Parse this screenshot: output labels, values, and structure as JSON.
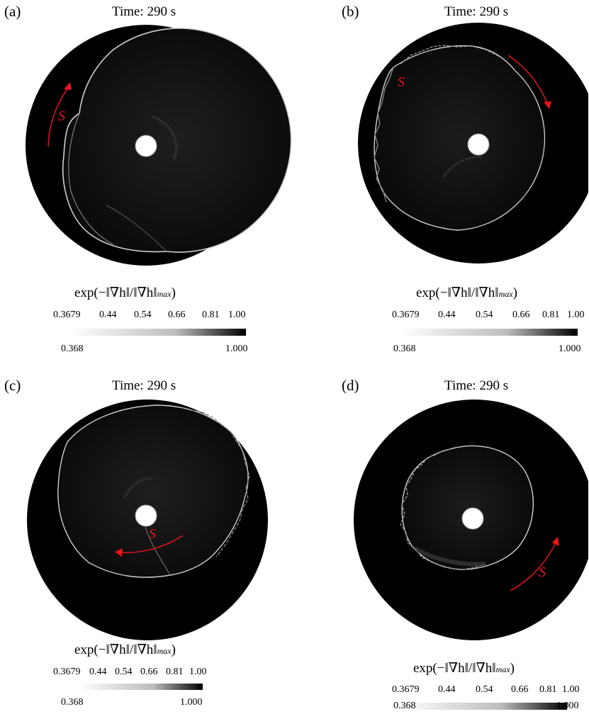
{
  "panels": [
    {
      "label": "(a)",
      "time": "Time: 290 s",
      "arrow_label": "S",
      "formula": {
        "lead": "exp(−‖∇h‖/‖∇h‖",
        "sub": "max",
        "tail": ")"
      },
      "colorbar": {
        "ticks": [
          "0.3679",
          "0.44",
          "0.54",
          "0.66",
          "0.81",
          "1.00"
        ],
        "min": "0.368",
        "max": "1.000"
      }
    },
    {
      "label": "(b)",
      "time": "Time: 290 s",
      "arrow_label": "S",
      "formula": {
        "lead": "exp(−‖∇h‖/‖∇h‖",
        "sub": "max",
        "tail": ")"
      },
      "colorbar": {
        "ticks": [
          "0.3679",
          "0.44",
          "0.54",
          "0.66",
          "0.81",
          "1.00"
        ],
        "min": "0.368",
        "max": "1.000"
      }
    },
    {
      "label": "(c)",
      "time": "Time: 290 s",
      "arrow_label": "S",
      "formula": {
        "lead": "exp(−‖∇h‖/‖∇h‖",
        "sub": "max",
        "tail": ")"
      },
      "colorbar": {
        "ticks": [
          "0.3679",
          "0.44",
          "0.54",
          "0.66",
          "0.81",
          "1.00"
        ],
        "min": "0.368",
        "max": "1.000"
      }
    },
    {
      "label": "(d)",
      "time": "Time: 290 s",
      "arrow_label": "S",
      "formula": {
        "lead": "exp(−‖∇h‖/‖∇h‖",
        "sub": "max",
        "tail": ")"
      },
      "colorbar": {
        "ticks": [
          "0.3679",
          "0.44",
          "0.54",
          "0.66",
          "0.81",
          "1.00"
        ],
        "min": "0.368",
        "max": "1.000"
      }
    }
  ],
  "colors": {
    "background": "#000000",
    "front": "#cfcfcf",
    "hole": "#ffffff",
    "arrow": "#e8141b"
  }
}
